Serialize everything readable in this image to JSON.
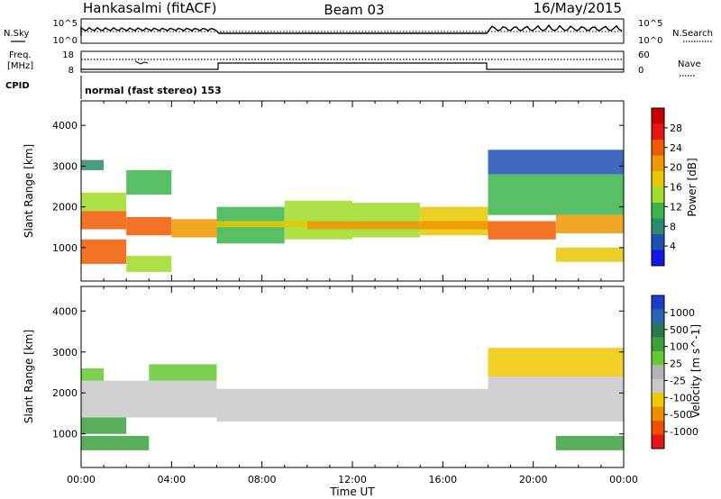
{
  "header": {
    "station": "Hankasalmi (fitACF)",
    "beam": "Beam 03",
    "date": "16/May/2015"
  },
  "side_labels": {
    "nsky": "N.Sky",
    "freq_line1": "Freq.",
    "freq_line2": "[MHz]",
    "cpid": "CPID",
    "nsearch": "N.Search",
    "nave": "Nave",
    "nsky_ticks": [
      "10^5",
      "10^0"
    ],
    "nsearch_ticks": [
      "10^5",
      "10^0"
    ],
    "freq_ticks": [
      "18",
      "8"
    ],
    "nave_ticks": [
      "60",
      "0"
    ]
  },
  "cpid_text": "normal (fast stereo) 153",
  "x_axis": {
    "label": "Time UT",
    "ticks": [
      "00:00",
      "04:00",
      "08:00",
      "12:00",
      "16:00",
      "20:00",
      "00:00"
    ]
  },
  "colors": {
    "power_scale": [
      "#1414e6",
      "#1e50b4",
      "#2a8a6e",
      "#3cb44b",
      "#a0dc28",
      "#e6c800",
      "#f09600",
      "#f05a00",
      "#e61414",
      "#c80000"
    ],
    "velocity_scale": [
      "#1e3cc8",
      "#2a64b4",
      "#2a7850",
      "#3ca03c",
      "#64c832",
      "#b4b4b4",
      "#c8c8c8",
      "#f0c800",
      "#f08c00",
      "#f05000",
      "#e61414"
    ]
  },
  "chart_data": [
    {
      "type": "heatmap",
      "name": "power",
      "ylabel": "Slant Range [km]",
      "xlabel": "",
      "x_range_hours": [
        0,
        24
      ],
      "y_range_km": [
        180,
        4600
      ],
      "y_ticks": [
        "1000",
        "2000",
        "3000",
        "4000"
      ],
      "colorbar": {
        "label": "Power [dB]",
        "ticks": [
          "4",
          "8",
          "12",
          "16",
          "20",
          "24",
          "28"
        ],
        "range": [
          0,
          32
        ]
      },
      "bands": [
        {
          "t0": 0,
          "t1": 2,
          "r0": 1450,
          "r1": 1900,
          "value": 24
        },
        {
          "t0": 2,
          "t1": 4,
          "r0": 1300,
          "r1": 1750,
          "value": 24
        },
        {
          "t0": 4,
          "t1": 6,
          "r0": 1250,
          "r1": 1700,
          "value": 22
        },
        {
          "t0": 0,
          "t1": 2,
          "r0": 1900,
          "r1": 2350,
          "value": 14
        },
        {
          "t0": 0,
          "t1": 1,
          "r0": 2900,
          "r1": 3150,
          "value": 8
        },
        {
          "t0": 2,
          "t1": 4,
          "r0": 2300,
          "r1": 2900,
          "value": 10
        },
        {
          "t0": 0,
          "t1": 2,
          "r0": 600,
          "r1": 1200,
          "value": 24
        },
        {
          "t0": 2,
          "t1": 4,
          "r0": 400,
          "r1": 800,
          "value": 14
        },
        {
          "t0": 6,
          "t1": 9,
          "r0": 1100,
          "r1": 2000,
          "value": 12
        },
        {
          "t0": 9,
          "t1": 12,
          "r0": 1200,
          "r1": 2150,
          "value": 13
        },
        {
          "t0": 12,
          "t1": 15,
          "r0": 1250,
          "r1": 2100,
          "value": 14
        },
        {
          "t0": 15,
          "t1": 18,
          "r0": 1300,
          "r1": 2000,
          "value": 16
        },
        {
          "t0": 6,
          "t1": 10,
          "r0": 1500,
          "r1": 1650,
          "value": 18
        },
        {
          "t0": 10,
          "t1": 18,
          "r0": 1450,
          "r1": 1650,
          "value": 20
        },
        {
          "t0": 18,
          "t1": 21,
          "r0": 1200,
          "r1": 1650,
          "value": 24
        },
        {
          "t0": 21,
          "t1": 24,
          "r0": 1350,
          "r1": 1800,
          "value": 22
        },
        {
          "t0": 18,
          "t1": 24,
          "r0": 1800,
          "r1": 2800,
          "value": 12
        },
        {
          "t0": 18,
          "t1": 24,
          "r0": 2800,
          "r1": 3400,
          "value": 6
        },
        {
          "t0": 21,
          "t1": 24,
          "r0": 650,
          "r1": 1000,
          "value": 18
        }
      ]
    },
    {
      "type": "heatmap",
      "name": "velocity",
      "ylabel": "Slant Range [km]",
      "xlabel": "Time UT",
      "x_range_hours": [
        0,
        24
      ],
      "y_range_km": [
        180,
        4600
      ],
      "y_ticks": [
        "1000",
        "2000",
        "3000",
        "4000"
      ],
      "colorbar": {
        "label": "Velocity [m s^-1]",
        "ticks": [
          "1000",
          "500",
          "100",
          "25",
          "-25",
          "-100",
          "-500",
          "-1000"
        ],
        "range": [
          -1000,
          1000
        ]
      },
      "bands": [
        {
          "t0": 0,
          "t1": 6,
          "r0": 1400,
          "r1": 2300,
          "value": 0
        },
        {
          "t0": 6,
          "t1": 18,
          "r0": 1300,
          "r1": 2100,
          "value": 0
        },
        {
          "t0": 18,
          "t1": 24,
          "r0": 1300,
          "r1": 2400,
          "value": 0
        },
        {
          "t0": 0,
          "t1": 3,
          "r0": 600,
          "r1": 950,
          "value": 150
        },
        {
          "t0": 0,
          "t1": 2,
          "r0": 1000,
          "r1": 1400,
          "value": 120
        },
        {
          "t0": 21,
          "t1": 24,
          "r0": 600,
          "r1": 950,
          "value": 150
        },
        {
          "t0": 0,
          "t1": 1,
          "r0": 2300,
          "r1": 2600,
          "value": 80
        },
        {
          "t0": 18,
          "t1": 24,
          "r0": 2400,
          "r1": 3100,
          "value": -40
        },
        {
          "t0": 3,
          "t1": 6,
          "r0": 2300,
          "r1": 2700,
          "value": 60
        }
      ]
    }
  ]
}
